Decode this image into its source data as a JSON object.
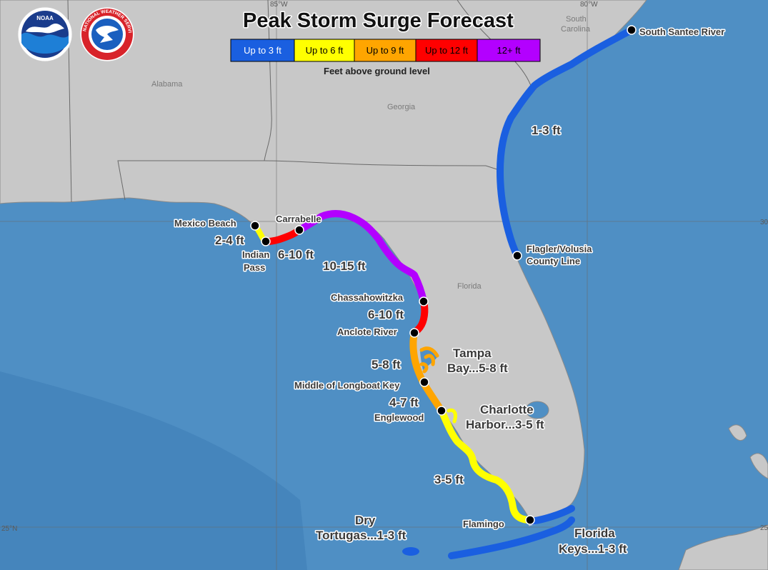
{
  "header": {
    "title": "Peak Storm Surge Forecast",
    "subtitle": "Feet above ground level"
  },
  "logos": {
    "noaa": "NOAA",
    "nws": "NATIONAL WEATHER SERVICE"
  },
  "legend": [
    {
      "label": "Up to 3 ft",
      "color": "#1a5fe0",
      "text_color": "#ffffff"
    },
    {
      "label": "Up to 6 ft",
      "color": "#ffff00",
      "text_color": "#000000"
    },
    {
      "label": "Up to 9 ft",
      "color": "#ffa500",
      "text_color": "#000000"
    },
    {
      "label": "Up to 12 ft",
      "color": "#ff0000",
      "text_color": "#000000"
    },
    {
      "label": "12+ ft",
      "color": "#b300ff",
      "text_color": "#000000"
    }
  ],
  "states": {
    "alabama": "Alabama",
    "georgia": "Georgia",
    "florida": "Florida",
    "south_carolina_1": "South",
    "south_carolina_2": "Carolina"
  },
  "gridlines": {
    "lon_80": "80°W",
    "lon_85": "85°W",
    "lat_25": "25°N",
    "lat_30_right": "30",
    "lat_25_right": "25"
  },
  "points": {
    "south_santee": "South Santee River",
    "flagler_1": "Flagler/Volusia",
    "flagler_2": "County Line",
    "mexico_beach": "Mexico Beach",
    "indian_pass_1": "Indian",
    "indian_pass_2": "Pass",
    "carrabelle": "Carrabelle",
    "chassahowitzka": "Chassahowitzka",
    "anclote": "Anclote River",
    "longboat": "Middle of Longboat Key",
    "englewood": "Englewood",
    "flamingo": "Flamingo"
  },
  "surge": {
    "atlantic": "1-3 ft",
    "mexico_indian": "2-4 ft",
    "indian_carrabelle": "6-10 ft",
    "big_bend": "10-15 ft",
    "chass_anclote": "6-10 ft",
    "anclote_longboat": "5-8 ft",
    "longboat_englewood": "4-7 ft",
    "sw_florida": "3-5 ft",
    "tampa_1": "Tampa",
    "tampa_2": "Bay...5-8 ft",
    "charlotte_1": "Charlotte",
    "charlotte_2": "Harbor...3-5 ft",
    "dry_tortugas_1": "Dry",
    "dry_tortugas_2": "Tortugas...1-3 ft",
    "keys_1": "Florida",
    "keys_2": "Keys...1-3 ft"
  }
}
